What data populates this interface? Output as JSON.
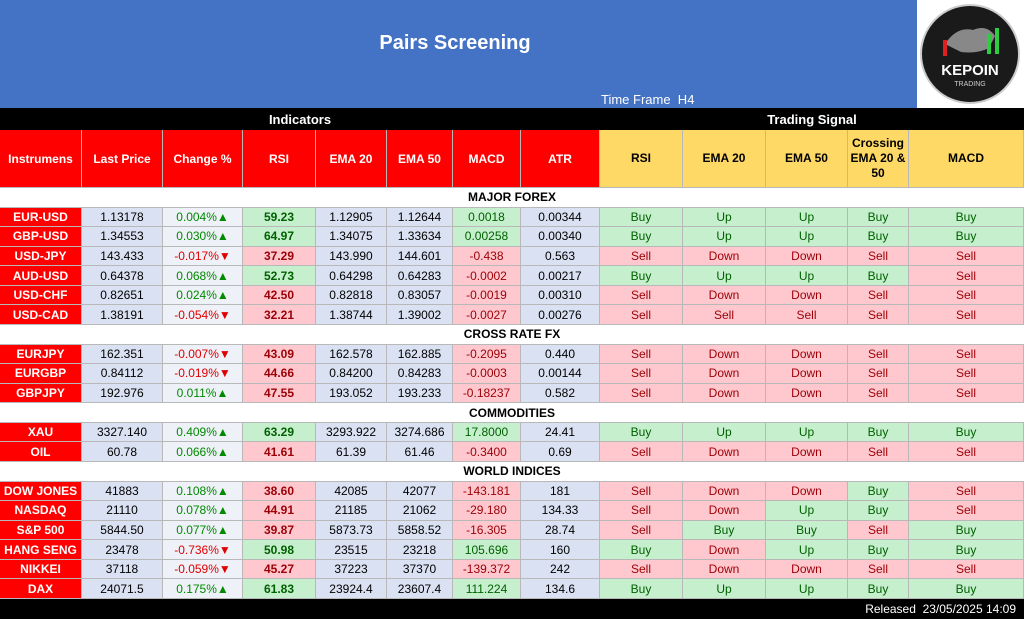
{
  "header": {
    "title": "Pairs Screening",
    "time_frame": "Time Frame  H4",
    "logo": {
      "name": "KEPOIN",
      "sub": "TRADING"
    }
  },
  "groups": {
    "indicators": "Indicators",
    "signals": "Trading Signal"
  },
  "columns": [
    "Instrumens",
    "Last Price",
    "Change %",
    "RSI",
    "EMA 20",
    "EMA 50",
    "MACD",
    "ATR",
    "RSI",
    "EMA 20",
    "EMA 50",
    "Crossing EMA  20 & 50",
    "MACD"
  ],
  "signal_colors": {
    "Buy": "green",
    "Up": "green",
    "Sell": "red",
    "Down": "red"
  },
  "sections": [
    {
      "name": "MAJOR FOREX",
      "rows": [
        [
          "EUR-USD",
          "1.13178",
          "0.004%▲",
          "59.23",
          "1.12905",
          "1.12644",
          "0.0018",
          "0.00344",
          "Buy",
          "Up",
          "Up",
          "Buy",
          "Buy"
        ],
        [
          "GBP-USD",
          "1.34553",
          "0.030%▲",
          "64.97",
          "1.34075",
          "1.33634",
          "0.00258",
          "0.00340",
          "Buy",
          "Up",
          "Up",
          "Buy",
          "Buy"
        ],
        [
          "USD-JPY",
          "143.433",
          "-0.017%▼",
          "37.29",
          "143.990",
          "144.601",
          "-0.438",
          "0.563",
          "Sell",
          "Down",
          "Down",
          "Sell",
          "Sell"
        ],
        [
          "AUD-USD",
          "0.64378",
          "0.068%▲",
          "52.73",
          "0.64298",
          "0.64283",
          "-0.0002",
          "0.00217",
          "Buy",
          "Up",
          "Up",
          "Buy",
          "Sell"
        ],
        [
          "USD-CHF",
          "0.82651",
          "0.024%▲",
          "42.50",
          "0.82818",
          "0.83057",
          "-0.0019",
          "0.00310",
          "Sell",
          "Down",
          "Down",
          "Sell",
          "Sell"
        ],
        [
          "USD-CAD",
          "1.38191",
          "-0.054%▼",
          "32.21",
          "1.38744",
          "1.39002",
          "-0.0027",
          "0.00276",
          "Sell",
          "Sell",
          "Sell",
          "Sell",
          "Sell"
        ]
      ]
    },
    {
      "name": "CROSS RATE FX",
      "rows": [
        [
          "EURJPY",
          "162.351",
          "-0.007%▼",
          "43.09",
          "162.578",
          "162.885",
          "-0.2095",
          "0.440",
          "Sell",
          "Down",
          "Down",
          "Sell",
          "Sell"
        ],
        [
          "EURGBP",
          "0.84112",
          "-0.019%▼",
          "44.66",
          "0.84200",
          "0.84283",
          "-0.0003",
          "0.00144",
          "Sell",
          "Down",
          "Down",
          "Sell",
          "Sell"
        ],
        [
          "GBPJPY",
          "192.976",
          "0.011%▲",
          "47.55",
          "193.052",
          "193.233",
          "-0.18237",
          "0.582",
          "Sell",
          "Down",
          "Down",
          "Sell",
          "Sell"
        ]
      ]
    },
    {
      "name": "COMMODITIES",
      "rows": [
        [
          "XAU",
          "3327.140",
          "0.409%▲",
          "63.29",
          "3293.922",
          "3274.686",
          "17.8000",
          "24.41",
          "Buy",
          "Up",
          "Up",
          "Buy",
          "Buy"
        ],
        [
          "OIL",
          "60.78",
          "0.066%▲",
          "41.61",
          "61.39",
          "61.46",
          "-0.3400",
          "0.69",
          "Sell",
          "Down",
          "Down",
          "Sell",
          "Sell"
        ]
      ]
    },
    {
      "name": "WORLD INDICES",
      "rows": [
        [
          "DOW JONES",
          "41883",
          "0.108%▲",
          "38.60",
          "42085",
          "42077",
          "-143.181",
          "181",
          "Sell",
          "Down",
          "Down",
          "Buy",
          "Sell"
        ],
        [
          "NASDAQ",
          "21110",
          "0.078%▲",
          "44.91",
          "21185",
          "21062",
          "-29.180",
          "134.33",
          "Sell",
          "Down",
          "Up",
          "Buy",
          "Sell"
        ],
        [
          "S&P 500",
          "5844.50",
          "0.077%▲",
          "39.87",
          "5873.73",
          "5858.52",
          "-16.305",
          "28.74",
          "Sell",
          "Buy",
          "Buy",
          "Sell",
          "Buy"
        ],
        [
          "HANG SENG",
          "23478",
          "-0.736%▼",
          "50.98",
          "23515",
          "23218",
          "105.696",
          "160",
          "Buy",
          "Down",
          "Up",
          "Buy",
          "Buy"
        ],
        [
          "NIKKEI",
          "37118",
          "-0.059%▼",
          "45.27",
          "37223",
          "37370",
          "-139.372",
          "242",
          "Sell",
          "Down",
          "Down",
          "Sell",
          "Sell"
        ],
        [
          "DAX",
          "24071.5",
          "0.175%▲",
          "61.83",
          "23924.4",
          "23607.4",
          "111.224",
          "134.6",
          "Buy",
          "Up",
          "Up",
          "Buy",
          "Buy"
        ]
      ]
    }
  ],
  "footer": "Released  23/05/2025 14:09"
}
